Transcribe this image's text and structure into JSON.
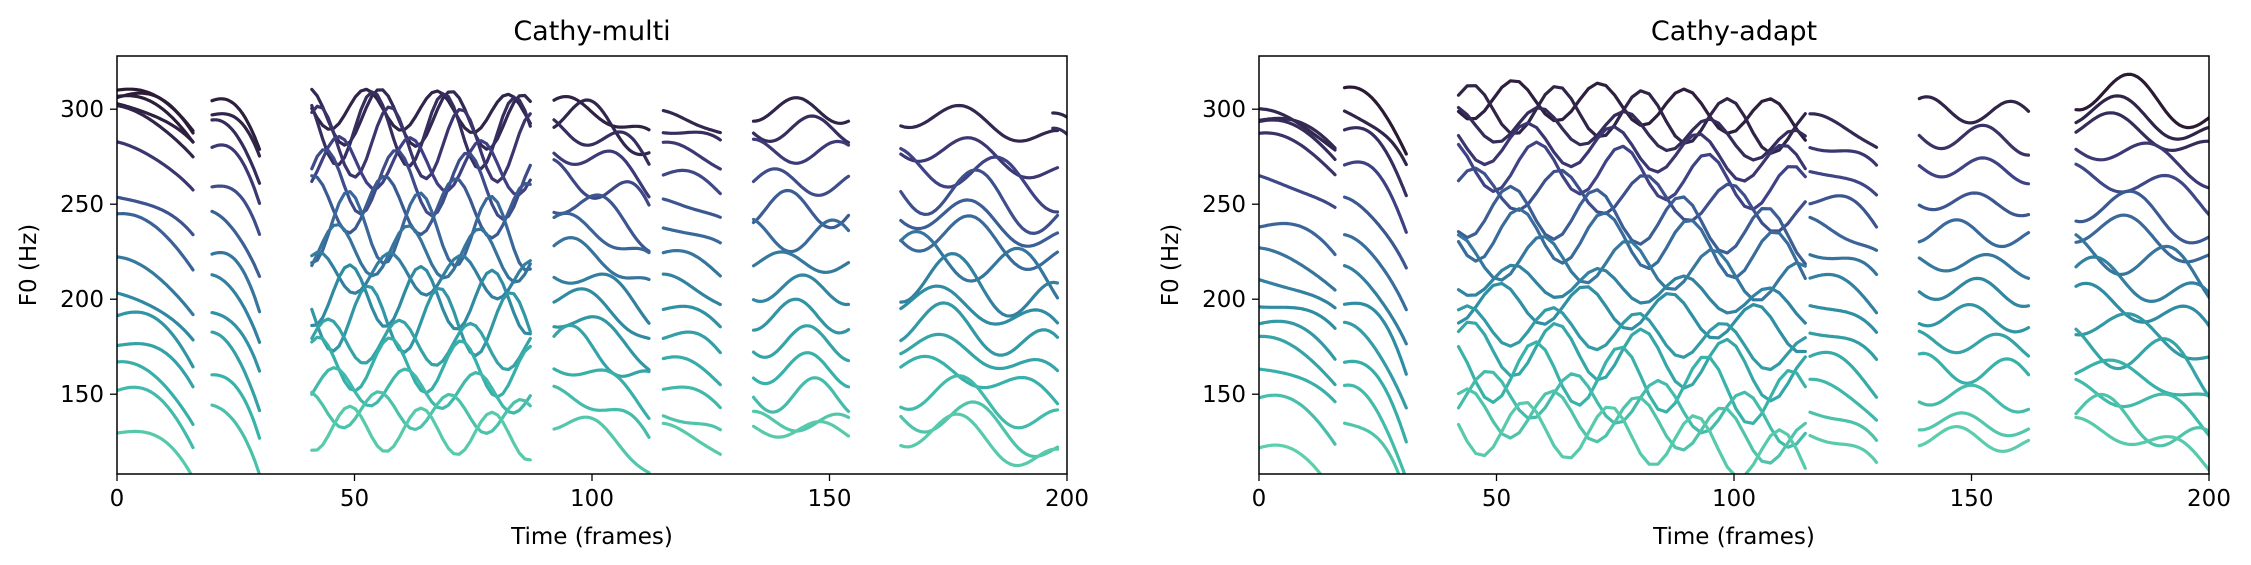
{
  "chart_data": [
    {
      "type": "line",
      "title": "Cathy-multi",
      "xlabel": "Time (frames)",
      "ylabel": "F0 (Hz)",
      "xlim": [
        0,
        200
      ],
      "ylim": [
        108,
        328
      ],
      "xticks": [
        0,
        50,
        100,
        150,
        200
      ],
      "yticks": [
        150,
        200,
        250,
        300
      ],
      "grid": false,
      "legend": "none",
      "colormap": [
        "#2b1a33",
        "#3f3f82",
        "#3a6a9b",
        "#2f8ea3",
        "#39b3aa",
        "#5ecfac"
      ],
      "series_count": 18,
      "segments": [
        {
          "x": [
            0,
            16
          ],
          "bases": [
            310,
            308,
            306,
            304,
            300,
            282,
            256,
            243,
            220,
            204,
            192,
            179,
            165,
            152,
            133
          ],
          "drop": 30,
          "wave_amp": 3,
          "wave_period": 30
        },
        {
          "x": [
            20,
            30
          ],
          "bases": [
            305,
            300,
            292,
            280,
            262,
            245,
            225,
            212,
            195,
            180,
            162,
            145
          ],
          "drop": 38,
          "wave_amp": 3,
          "wave_period": 20
        },
        {
          "x": [
            41,
            87
          ],
          "bases": [
            300,
            296,
            290,
            283,
            272,
            262,
            250,
            238,
            226,
            214,
            202,
            190,
            178,
            166,
            154,
            142,
            132
          ],
          "drop": 5,
          "wave_amp": 14,
          "wave_period": 15
        },
        {
          "x": [
            92,
            112
          ],
          "bases": [
            302,
            298,
            290,
            278,
            265,
            252,
            240,
            227,
            214,
            202,
            190,
            178,
            165,
            150,
            136
          ],
          "drop": 25,
          "wave_amp": 7,
          "wave_period": 18
        },
        {
          "x": [
            115,
            127
          ],
          "bases": [
            297,
            290,
            280,
            266,
            252,
            238,
            224,
            210,
            196,
            182,
            168,
            154,
            140,
            132
          ],
          "drop": 12,
          "wave_amp": 3,
          "wave_period": 20
        },
        {
          "x": [
            134,
            154
          ],
          "bases": [
            300,
            290,
            278,
            262,
            248,
            234,
            220,
            206,
            192,
            178,
            164,
            150,
            136,
            132
          ],
          "drop": 2,
          "wave_amp": 7,
          "wave_period": 18
        },
        {
          "x": [
            165,
            198
          ],
          "bases": [
            297,
            280,
            270,
            258,
            246,
            236,
            224,
            212,
            200,
            188,
            176,
            164,
            152,
            140,
            132
          ],
          "drop": 20,
          "wave_amp": 10,
          "wave_period": 22
        },
        {
          "x": [
            197,
            201
          ],
          "bases": [
            298,
            290
          ],
          "drop": 6,
          "wave_amp": 0,
          "wave_period": 30
        }
      ]
    },
    {
      "type": "line",
      "title": "Cathy-adapt",
      "xlabel": "Time (frames)",
      "ylabel": "F0 (Hz)",
      "xlim": [
        0,
        200
      ],
      "ylim": [
        108,
        328
      ],
      "xticks": [
        0,
        50,
        100,
        150,
        200
      ],
      "yticks": [
        150,
        200,
        250,
        300
      ],
      "grid": false,
      "legend": "none",
      "colormap": [
        "#2b1a33",
        "#3f3f82",
        "#3a6a9b",
        "#2f8ea3",
        "#39b3aa",
        "#5ecfac"
      ],
      "series_count": 18,
      "segments": [
        {
          "x": [
            0,
            16
          ],
          "bases": [
            297,
            295,
            292,
            285,
            265,
            240,
            225,
            212,
            200,
            188,
            178,
            165,
            147,
            121
          ],
          "drop": 22,
          "wave_amp": 3,
          "wave_period": 30
        },
        {
          "x": [
            18,
            31
          ],
          "bases": [
            310,
            300,
            290,
            272,
            252,
            232,
            215,
            200,
            185,
            168,
            152,
            138
          ],
          "drop": 45,
          "wave_amp": 3,
          "wave_period": 20
        },
        {
          "x": [
            42,
            115
          ],
          "bases": [
            305,
            300,
            292,
            282,
            270,
            258,
            246,
            234,
            222,
            210,
            198,
            186,
            174,
            162,
            150,
            140,
            132
          ],
          "drop": 18,
          "wave_amp": 12,
          "wave_period": 18
        },
        {
          "x": [
            116,
            130
          ],
          "bases": [
            295,
            282,
            268,
            254,
            240,
            226,
            212,
            198,
            184,
            170,
            156,
            142,
            130
          ],
          "drop": 20,
          "wave_amp": 3,
          "wave_period": 20
        },
        {
          "x": [
            139,
            162
          ],
          "bases": [
            300,
            286,
            270,
            252,
            236,
            220,
            206,
            192,
            178,
            164,
            150,
            136,
            128
          ],
          "drop": 5,
          "wave_amp": 6,
          "wave_period": 18
        },
        {
          "x": [
            172,
            201
          ],
          "bases": [
            310,
            300,
            292,
            280,
            265,
            250,
            238,
            225,
            213,
            200,
            188,
            176,
            164,
            152,
            140,
            132
          ],
          "drop": 22,
          "wave_amp": 8,
          "wave_period": 22
        }
      ]
    }
  ]
}
